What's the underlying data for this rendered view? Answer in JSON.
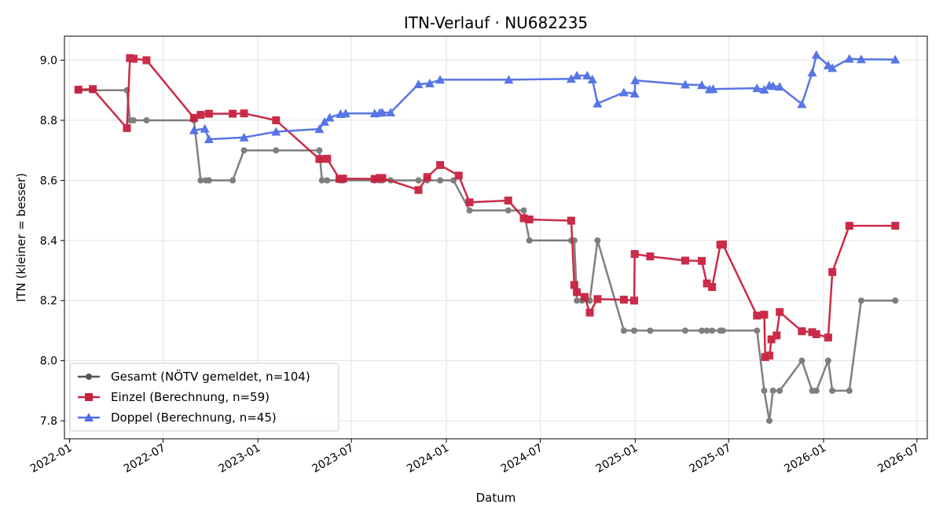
{
  "chart_data": {
    "type": "line",
    "title": "ITN-Verlauf · NU682235",
    "xlabel": "Datum",
    "ylabel": "ITN  (kleiner = besser)",
    "x_ticks": [
      "2022-01",
      "2022-07",
      "2023-01",
      "2023-07",
      "2024-01",
      "2024-07",
      "2025-01",
      "2025-07",
      "2026-01",
      "2026-07"
    ],
    "y_ticks": [
      7.8,
      8.0,
      8.2,
      8.4,
      8.6,
      8.8,
      9.0
    ],
    "xlim": [
      "2021-12-22",
      "2026-07-21"
    ],
    "ylim": [
      7.74,
      9.08
    ],
    "grid": true,
    "legend_position": "lower-left",
    "series": [
      {
        "name": "Gesamt (NÖTV gemeldet, n=104)",
        "color": "#555555",
        "marker": "circle",
        "points": [
          [
            "2022-01-18",
            8.9
          ],
          [
            "2022-02-15",
            8.9
          ],
          [
            "2022-04-22",
            8.9
          ],
          [
            "2022-04-28",
            8.8
          ],
          [
            "2022-05-05",
            8.8
          ],
          [
            "2022-05-30",
            8.8
          ],
          [
            "2022-08-30",
            8.8
          ],
          [
            "2022-09-12",
            8.6
          ],
          [
            "2022-09-22",
            8.6
          ],
          [
            "2022-09-28",
            8.6
          ],
          [
            "2022-11-13",
            8.6
          ],
          [
            "2022-12-05",
            8.7
          ],
          [
            "2023-02-05",
            8.7
          ],
          [
            "2023-04-30",
            8.7
          ],
          [
            "2023-05-05",
            8.6
          ],
          [
            "2023-05-15",
            8.6
          ],
          [
            "2023-06-10",
            8.6
          ],
          [
            "2023-06-15",
            8.6
          ],
          [
            "2023-08-15",
            8.6
          ],
          [
            "2023-08-25",
            8.6
          ],
          [
            "2023-08-30",
            8.6
          ],
          [
            "2023-09-15",
            8.6
          ],
          [
            "2023-11-08",
            8.6
          ],
          [
            "2023-11-25",
            8.6
          ],
          [
            "2023-12-20",
            8.6
          ],
          [
            "2024-01-15",
            8.6
          ],
          [
            "2024-02-15",
            8.5
          ],
          [
            "2024-04-30",
            8.5
          ],
          [
            "2024-05-30",
            8.5
          ],
          [
            "2024-06-10",
            8.4
          ],
          [
            "2024-08-30",
            8.4
          ],
          [
            "2024-09-05",
            8.4
          ],
          [
            "2024-09-10",
            8.2
          ],
          [
            "2024-09-20",
            8.2
          ],
          [
            "2024-10-05",
            8.2
          ],
          [
            "2024-10-20",
            8.4
          ],
          [
            "2024-12-10",
            8.1
          ],
          [
            "2024-12-30",
            8.1
          ],
          [
            "2025-01-30",
            8.1
          ],
          [
            "2025-04-08",
            8.1
          ],
          [
            "2025-05-10",
            8.1
          ],
          [
            "2025-05-20",
            8.1
          ],
          [
            "2025-05-30",
            8.1
          ],
          [
            "2025-06-15",
            8.1
          ],
          [
            "2025-06-20",
            8.1
          ],
          [
            "2025-08-25",
            8.1
          ],
          [
            "2025-09-08",
            7.9
          ],
          [
            "2025-09-18",
            7.8
          ],
          [
            "2025-09-25",
            7.9
          ],
          [
            "2025-10-08",
            7.9
          ],
          [
            "2025-11-20",
            8.0
          ],
          [
            "2025-12-10",
            7.9
          ],
          [
            "2025-12-18",
            7.9
          ],
          [
            "2026-01-10",
            8.0
          ],
          [
            "2026-01-18",
            7.9
          ],
          [
            "2026-02-20",
            7.9
          ],
          [
            "2026-03-15",
            8.2
          ],
          [
            "2026-05-20",
            8.2
          ]
        ]
      },
      {
        "name": "Einzel (Berechnung, n=59)",
        "color": "#c8203f",
        "marker": "square",
        "points": [
          [
            "2022-01-18",
            8.902
          ],
          [
            "2022-02-15",
            8.904
          ],
          [
            "2022-04-22",
            8.774
          ],
          [
            "2022-04-28",
            9.007
          ],
          [
            "2022-05-05",
            9.005
          ],
          [
            "2022-05-30",
            9.0
          ],
          [
            "2022-08-30",
            8.808
          ],
          [
            "2022-09-12",
            8.818
          ],
          [
            "2022-09-28",
            8.822
          ],
          [
            "2022-11-13",
            8.822
          ],
          [
            "2022-12-05",
            8.823
          ],
          [
            "2023-02-05",
            8.8
          ],
          [
            "2023-04-30",
            8.671
          ],
          [
            "2023-05-15",
            8.672
          ],
          [
            "2023-06-08",
            8.605
          ],
          [
            "2023-06-15",
            8.606
          ],
          [
            "2023-08-15",
            8.605
          ],
          [
            "2023-08-25",
            8.608
          ],
          [
            "2023-08-30",
            8.608
          ],
          [
            "2023-11-08",
            8.568
          ],
          [
            "2023-11-25",
            8.611
          ],
          [
            "2023-12-20",
            8.651
          ],
          [
            "2024-01-25",
            8.616
          ],
          [
            "2024-02-15",
            8.527
          ],
          [
            "2024-04-30",
            8.533
          ],
          [
            "2024-05-30",
            8.474
          ],
          [
            "2024-06-10",
            8.47
          ],
          [
            "2024-08-30",
            8.466
          ],
          [
            "2024-09-05",
            8.252
          ],
          [
            "2024-09-10",
            8.228
          ],
          [
            "2024-09-25",
            8.212
          ],
          [
            "2024-10-05",
            8.16
          ],
          [
            "2024-10-20",
            8.205
          ],
          [
            "2024-12-10",
            8.203
          ],
          [
            "2024-12-30",
            8.2
          ],
          [
            "2024-12-31",
            8.355
          ],
          [
            "2025-01-30",
            8.347
          ],
          [
            "2025-04-08",
            8.333
          ],
          [
            "2025-05-10",
            8.332
          ],
          [
            "2025-05-20",
            8.257
          ],
          [
            "2025-05-30",
            8.245
          ],
          [
            "2025-06-15",
            8.386
          ],
          [
            "2025-06-20",
            8.387
          ],
          [
            "2025-08-25",
            8.15
          ],
          [
            "2025-09-08",
            8.153
          ],
          [
            "2025-09-10",
            8.012
          ],
          [
            "2025-09-18",
            8.017
          ],
          [
            "2025-09-22",
            8.071
          ],
          [
            "2025-10-02",
            8.084
          ],
          [
            "2025-10-08",
            8.162
          ],
          [
            "2025-11-20",
            8.098
          ],
          [
            "2025-12-10",
            8.095
          ],
          [
            "2025-12-18",
            8.088
          ],
          [
            "2026-01-10",
            8.077
          ],
          [
            "2026-01-18",
            8.295
          ],
          [
            "2026-02-20",
            8.449
          ],
          [
            "2026-05-20",
            8.449
          ]
        ]
      },
      {
        "name": "Doppel (Berechnung, n=45)",
        "color": "#4f6ee6",
        "marker": "triangle",
        "points": [
          [
            "2022-08-30",
            8.767
          ],
          [
            "2022-09-20",
            8.772
          ],
          [
            "2022-09-28",
            8.737
          ],
          [
            "2022-12-05",
            8.743
          ],
          [
            "2023-02-05",
            8.762
          ],
          [
            "2023-04-30",
            8.771
          ],
          [
            "2023-05-10",
            8.795
          ],
          [
            "2023-05-20",
            8.809
          ],
          [
            "2023-06-10",
            8.821
          ],
          [
            "2023-06-20",
            8.823
          ],
          [
            "2023-08-15",
            8.823
          ],
          [
            "2023-08-25",
            8.825
          ],
          [
            "2023-08-30",
            8.826
          ],
          [
            "2023-09-15",
            8.826
          ],
          [
            "2023-11-08",
            8.92
          ],
          [
            "2023-11-30",
            8.923
          ],
          [
            "2023-12-20",
            8.935
          ],
          [
            "2024-05-01",
            8.935
          ],
          [
            "2024-08-30",
            8.938
          ],
          [
            "2024-09-10",
            8.949
          ],
          [
            "2024-09-30",
            8.949
          ],
          [
            "2024-10-10",
            8.936
          ],
          [
            "2024-10-20",
            8.856
          ],
          [
            "2024-12-10",
            8.893
          ],
          [
            "2024-12-31",
            8.889
          ],
          [
            "2025-01-01",
            8.933
          ],
          [
            "2025-04-08",
            8.919
          ],
          [
            "2025-05-10",
            8.917
          ],
          [
            "2025-05-25",
            8.903
          ],
          [
            "2025-06-01",
            8.904
          ],
          [
            "2025-08-25",
            8.907
          ],
          [
            "2025-09-08",
            8.902
          ],
          [
            "2025-09-18",
            8.916
          ],
          [
            "2025-09-25",
            8.914
          ],
          [
            "2025-10-08",
            8.912
          ],
          [
            "2025-11-20",
            8.854
          ],
          [
            "2025-12-10",
            8.959
          ],
          [
            "2025-12-18",
            9.018
          ],
          [
            "2026-01-10",
            8.983
          ],
          [
            "2026-01-18",
            8.974
          ],
          [
            "2026-02-20",
            9.005
          ],
          [
            "2026-03-15",
            9.003
          ],
          [
            "2026-05-20",
            9.002
          ]
        ]
      }
    ]
  }
}
